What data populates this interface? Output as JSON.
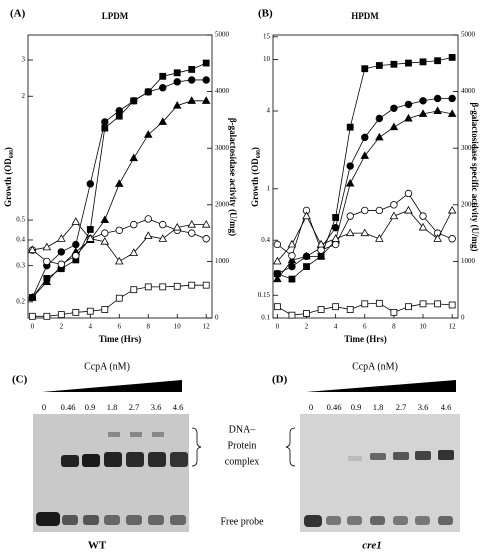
{
  "chart_data": [
    {
      "type": "line",
      "panel": "(A)",
      "title": "LPDM",
      "ylabel": "Growth (OD₆₀₀)",
      "y2label": "β-galactosidase activity (U/mg)",
      "xlabel": "Time (Hrs)",
      "x": [
        0,
        1,
        2,
        3,
        4,
        5,
        6,
        7,
        8,
        9,
        10,
        11,
        12
      ],
      "xlim": [
        -0.3,
        12.4
      ],
      "xticks": [
        0,
        2,
        4,
        6,
        8,
        10,
        12
      ],
      "ylog": true,
      "ylim": [
        0.167,
        3.97
      ],
      "yticks": [
        0.2,
        0.3,
        0.4,
        0.5,
        2,
        3
      ],
      "y2lim": [
        0,
        5000
      ],
      "y2ticks": [
        0,
        1000,
        2000,
        3000,
        4000,
        5000
      ],
      "series": [
        {
          "color": "#000",
          "marker": "square",
          "filled": true,
          "values": [
            0.21,
            0.26,
            0.29,
            0.32,
            0.45,
            1.4,
            1.6,
            1.9,
            2.1,
            2.5,
            2.6,
            2.7,
            2.9
          ]
        },
        {
          "color": "#000",
          "marker": "circle",
          "filled": true,
          "values": [
            0.21,
            0.3,
            0.35,
            0.38,
            0.75,
            1.5,
            1.7,
            1.9,
            2.1,
            2.2,
            2.35,
            2.4,
            2.4
          ]
        },
        {
          "color": "#000",
          "marker": "triangle",
          "filled": true,
          "values": [
            0.21,
            0.25,
            0.3,
            0.35,
            0.4,
            0.5,
            0.75,
            1.0,
            1.3,
            1.5,
            1.8,
            1.9,
            1.9
          ]
        },
        {
          "color": "#000",
          "marker": "circle",
          "filled": false,
          "axis": "y2",
          "values": [
            1200,
            1000,
            950,
            1100,
            1400,
            1500,
            1550,
            1650,
            1750,
            1650,
            1550,
            1500,
            1400
          ]
        },
        {
          "color": "#000",
          "marker": "triangle",
          "filled": false,
          "axis": "y2",
          "values": [
            1200,
            1250,
            1400,
            1700,
            1400,
            1350,
            1000,
            1150,
            1450,
            1400,
            1600,
            1650,
            1650
          ]
        },
        {
          "color": "#000",
          "marker": "square",
          "filled": false,
          "axis": "y2",
          "values": [
            30,
            30,
            60,
            100,
            120,
            150,
            350,
            500,
            550,
            550,
            560,
            580,
            580
          ]
        }
      ]
    },
    {
      "type": "line",
      "panel": "(B)",
      "title": "HPDM",
      "ylabel": "Growth (OD₆₀₀)",
      "y2label": "β-galactosidase specific activity (U/mg)",
      "xlabel": "Time (Hrs)",
      "x": [
        0,
        1,
        2,
        3,
        4,
        5,
        6,
        7,
        8,
        9,
        10,
        11,
        12
      ],
      "xlim": [
        -0.3,
        12.4
      ],
      "xticks": [
        0,
        2,
        4,
        6,
        8,
        10,
        12
      ],
      "ylog": true,
      "ylim": [
        0.1,
        15.5
      ],
      "yticks": [
        0.1,
        0.15,
        0.4,
        1,
        4,
        10,
        15
      ],
      "y2lim": [
        0,
        5000
      ],
      "y2ticks": [
        0,
        1000,
        2000,
        3000,
        4000,
        5000
      ],
      "series": [
        {
          "color": "#000",
          "marker": "square",
          "filled": true,
          "values": [
            0.22,
            0.2,
            0.25,
            0.3,
            0.6,
            3,
            8.5,
            9,
            9.2,
            9.4,
            9.6,
            9.8,
            10.4
          ]
        },
        {
          "color": "#000",
          "marker": "circle",
          "filled": true,
          "values": [
            0.22,
            0.25,
            0.3,
            0.35,
            0.5,
            1.5,
            2.5,
            3.5,
            4.2,
            4.5,
            4.8,
            5,
            5
          ]
        },
        {
          "color": "#000",
          "marker": "triangle",
          "filled": true,
          "values": [
            0.2,
            0.28,
            0.3,
            0.3,
            0.4,
            1.1,
            1.8,
            2.5,
            3,
            3.5,
            3.8,
            4,
            3.8
          ]
        },
        {
          "color": "#000",
          "marker": "circle",
          "filled": false,
          "axis": "y2",
          "values": [
            1300,
            1100,
            1900,
            1200,
            1300,
            1800,
            1900,
            1900,
            2000,
            2200,
            1800,
            1500,
            1400
          ]
        },
        {
          "color": "#000",
          "marker": "triangle",
          "filled": false,
          "axis": "y2",
          "values": [
            1000,
            1300,
            1800,
            1300,
            1400,
            1500,
            1500,
            1400,
            1800,
            1900,
            1600,
            1400,
            1900
          ]
        },
        {
          "color": "#000",
          "marker": "square",
          "filled": false,
          "axis": "y2",
          "values": [
            200,
            50,
            80,
            150,
            200,
            150,
            250,
            260,
            100,
            200,
            250,
            250,
            230
          ]
        }
      ]
    }
  ],
  "gels": [
    {
      "panel": "(C)",
      "title": "CcpA (nM)",
      "lanes": [
        "0",
        "0.46",
        "0.9",
        "1.8",
        "2.7",
        "3.6",
        "4.6"
      ],
      "label": "WT"
    },
    {
      "panel": "(D)",
      "title": "CcpA (nM)",
      "lanes": [
        "0",
        "0.46",
        "0.9",
        "1.8",
        "2.7",
        "3.6",
        "4.6"
      ],
      "label": "cre1"
    }
  ],
  "annotations": {
    "complex": [
      "DNA–",
      "Protein",
      "complex"
    ],
    "free": "Free probe"
  }
}
